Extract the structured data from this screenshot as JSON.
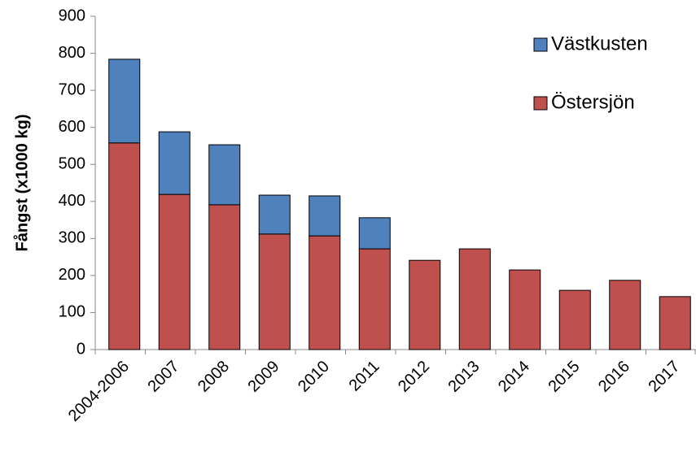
{
  "chart_data": {
    "type": "stacked-bar",
    "ylabel": "Fångst (x1000 kg)",
    "categories": [
      "2004-2006",
      "2007",
      "2008",
      "2009",
      "2010",
      "2011",
      "2012",
      "2013",
      "2014",
      "2015",
      "2016",
      "2017"
    ],
    "series": [
      {
        "name": "Östersjön",
        "color": "#c0504d",
        "values": [
          558,
          419,
          391,
          312,
          307,
          272,
          241,
          272,
          215,
          160,
          187,
          143
        ]
      },
      {
        "name": "Västkusten",
        "color": "#4f81bd",
        "values": [
          226,
          169,
          162,
          105,
          108,
          84,
          null,
          null,
          null,
          null,
          null,
          null
        ]
      }
    ],
    "ylim": [
      0,
      900
    ],
    "yticks": [
      0,
      100,
      200,
      300,
      400,
      500,
      600,
      700,
      800,
      900
    ],
    "legend": "upper-right"
  }
}
